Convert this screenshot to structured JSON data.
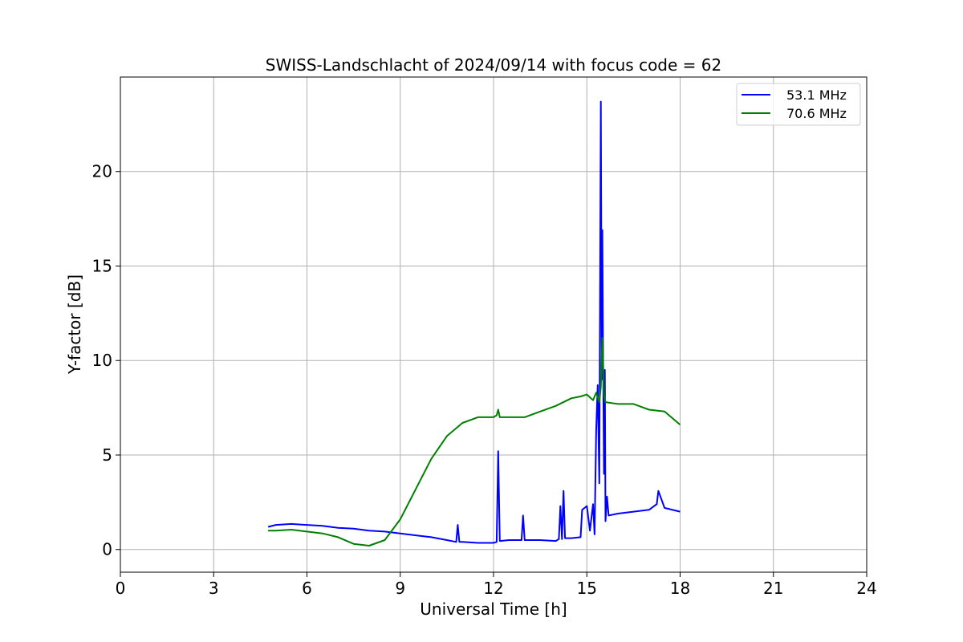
{
  "chart_data": {
    "type": "line",
    "title": "SWISS-Landschlacht of 2024/09/14 with focus code = 62",
    "xlabel": "Universal Time [h]",
    "ylabel": "Y-factor [dB]",
    "xlim": [
      0,
      24
    ],
    "ylim": [
      -1.2,
      25
    ],
    "xticks": [
      0,
      3,
      6,
      9,
      12,
      15,
      18,
      21,
      24
    ],
    "yticks": [
      0,
      5,
      10,
      15,
      20
    ],
    "grid": true,
    "legend_position": "top-right",
    "series": [
      {
        "name": "53.1 MHz",
        "color": "#0000ff",
        "x": [
          4.75,
          5.0,
          5.5,
          6.0,
          6.5,
          7.0,
          7.5,
          8.0,
          8.5,
          9.0,
          9.5,
          10.0,
          10.5,
          10.8,
          10.85,
          10.9,
          11.0,
          11.5,
          12.0,
          12.1,
          12.15,
          12.2,
          12.5,
          12.9,
          12.95,
          13.0,
          13.5,
          14.0,
          14.1,
          14.15,
          14.2,
          14.25,
          14.3,
          14.5,
          14.8,
          14.85,
          15.0,
          15.1,
          15.2,
          15.25,
          15.3,
          15.35,
          15.4,
          15.45,
          15.48,
          15.5,
          15.52,
          15.55,
          15.58,
          15.6,
          15.65,
          15.7,
          16.0,
          16.5,
          17.0,
          17.25,
          17.3,
          17.5,
          18.0
        ],
        "y": [
          1.2,
          1.3,
          1.35,
          1.3,
          1.25,
          1.15,
          1.1,
          1.0,
          0.95,
          0.85,
          0.75,
          0.65,
          0.5,
          0.4,
          1.3,
          0.4,
          0.4,
          0.35,
          0.35,
          0.4,
          5.2,
          0.45,
          0.5,
          0.5,
          1.8,
          0.5,
          0.5,
          0.45,
          0.55,
          2.3,
          0.55,
          3.1,
          0.6,
          0.6,
          0.65,
          2.1,
          2.3,
          1.0,
          2.4,
          0.8,
          6.3,
          8.7,
          3.5,
          23.7,
          9.0,
          16.9,
          11.0,
          4.0,
          9.5,
          1.5,
          2.8,
          1.8,
          1.9,
          2.0,
          2.1,
          2.4,
          3.1,
          2.2,
          2.0
        ]
      },
      {
        "name": "70.6 MHz",
        "color": "#008000",
        "x": [
          4.75,
          5.0,
          5.5,
          6.0,
          6.5,
          7.0,
          7.5,
          8.0,
          8.5,
          9.0,
          9.5,
          10.0,
          10.5,
          11.0,
          11.5,
          12.0,
          12.1,
          12.15,
          12.2,
          12.5,
          13.0,
          13.5,
          14.0,
          14.5,
          14.8,
          15.0,
          15.2,
          15.3,
          15.4,
          15.45,
          15.5,
          15.55,
          15.6,
          16.0,
          16.5,
          17.0,
          17.5,
          18.0
        ],
        "y": [
          1.0,
          1.0,
          1.05,
          0.95,
          0.85,
          0.65,
          0.3,
          0.2,
          0.5,
          1.6,
          3.2,
          4.8,
          6.0,
          6.7,
          7.0,
          7.0,
          7.1,
          7.4,
          7.0,
          7.0,
          7.0,
          7.3,
          7.6,
          8.0,
          8.1,
          8.2,
          7.9,
          8.3,
          7.8,
          8.6,
          11.2,
          8.2,
          7.8,
          7.7,
          7.7,
          7.4,
          7.3,
          6.6
        ]
      }
    ]
  }
}
